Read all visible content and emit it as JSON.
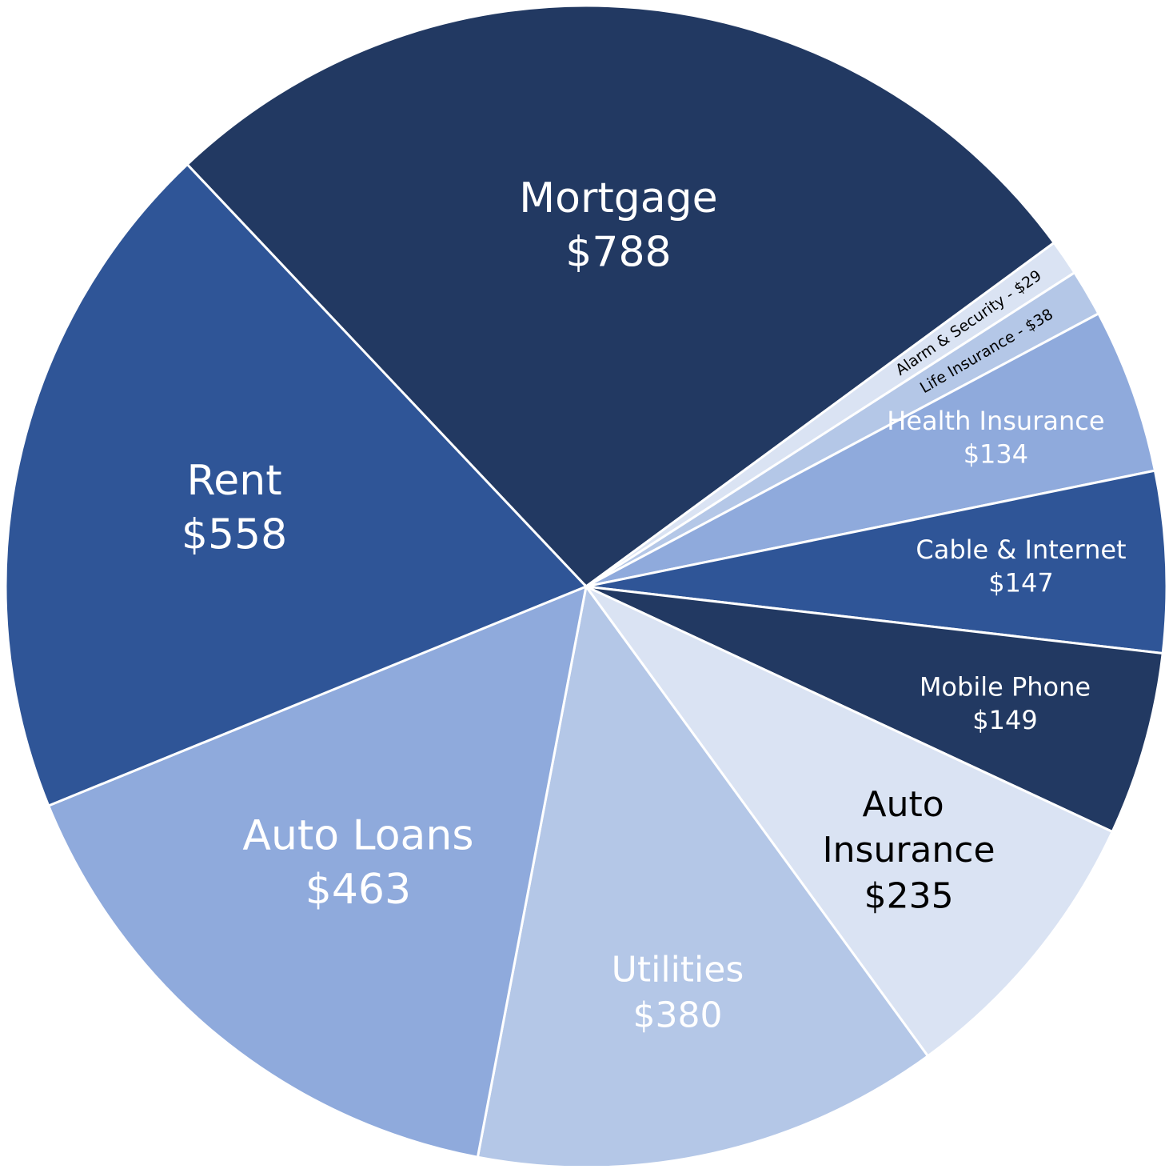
{
  "chart_data": {
    "type": "pie",
    "categories": [
      "Mortgage",
      "Alarm & Security - $29",
      "Life Insurance - $38",
      "Health Insurance",
      "Cable &  Internet",
      "Mobile Phone",
      "Auto Insurance",
      "Utilities",
      "Auto Loans",
      "Rent"
    ],
    "values": [
      788,
      29,
      38,
      134,
      147,
      149,
      235,
      380,
      463,
      558
    ],
    "value_labels": [
      "$788",
      null,
      null,
      "$134",
      "$147",
      "$149",
      "$235",
      "$380",
      "$463",
      "$558"
    ],
    "colors": [
      "#223962",
      "#dae3f3",
      "#b4c7e7",
      "#8faadc",
      "#2f5597",
      "#223962",
      "#dae3f3",
      "#b4c7e7",
      "#8faadc",
      "#2f5597"
    ],
    "label_colors": [
      "#ffffff",
      "#000000",
      "#000000",
      "#ffffff",
      "#ffffff",
      "#ffffff",
      "#000000",
      "#ffffff",
      "#ffffff",
      "#ffffff"
    ]
  }
}
